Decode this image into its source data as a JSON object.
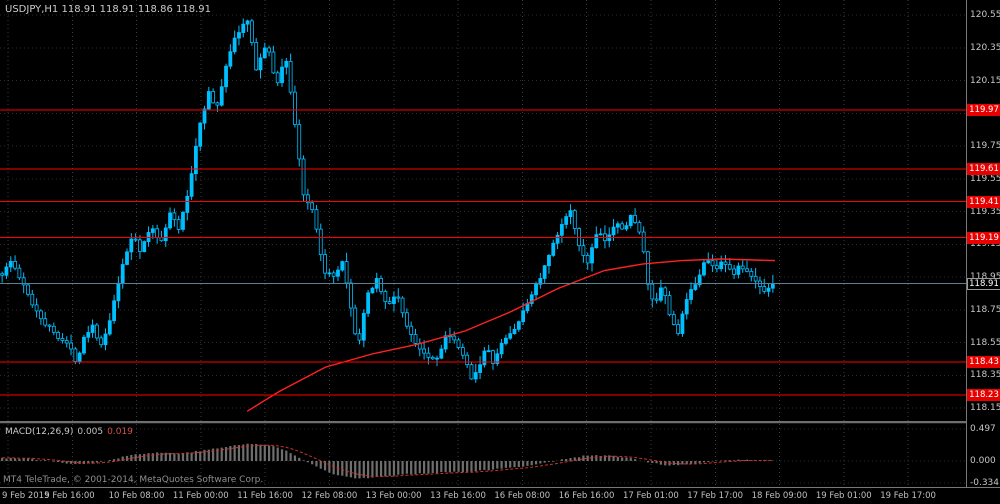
{
  "header": {
    "title": "USDJPY,H1 118.91 118.91 118.86 118.91",
    "symbol": "USDJPY",
    "timeframe": "H1"
  },
  "chart_data": {
    "type": "candlestick",
    "title": "USDJPY,H1",
    "last_bar_ohlc": {
      "open": 118.91,
      "high": 118.91,
      "low": 118.86,
      "close": 118.91
    },
    "current_price": "118.91",
    "y_axis": {
      "min": 118.15,
      "max": 120.55,
      "step": 0.2,
      "ticks": [
        "120.55",
        "120.35",
        "120.15",
        "119.95",
        "119.75",
        "119.55",
        "119.35",
        "119.15",
        "118.95",
        "118.75",
        "118.55",
        "118.35",
        "118.15"
      ]
    },
    "x_axis": {
      "labels": [
        "9 Feb 2015",
        "9 Feb 16:00",
        "10 Feb 08:00",
        "11 Feb 00:00",
        "11 Feb 16:00",
        "12 Feb 08:00",
        "13 Feb 00:00",
        "13 Feb 16:00",
        "16 Feb 08:00",
        "16 Feb 16:00",
        "17 Feb 01:00",
        "17 Feb 17:00",
        "18 Feb 09:00",
        "19 Feb 01:00",
        "19 Feb 17:00"
      ]
    },
    "levels": [
      "119.97",
      "119.61",
      "119.41",
      "119.19",
      "118.43",
      "118.23"
    ],
    "price_path": [
      [
        0,
        118.97
      ],
      [
        0.012,
        119.05
      ],
      [
        0.025,
        118.92
      ],
      [
        0.04,
        118.78
      ],
      [
        0.055,
        118.67
      ],
      [
        0.07,
        118.6
      ],
      [
        0.085,
        118.54
      ],
      [
        0.097,
        118.43
      ],
      [
        0.105,
        118.58
      ],
      [
        0.118,
        118.66
      ],
      [
        0.128,
        118.52
      ],
      [
        0.14,
        118.68
      ],
      [
        0.152,
        118.94
      ],
      [
        0.163,
        119.12
      ],
      [
        0.17,
        119.22
      ],
      [
        0.18,
        119.1
      ],
      [
        0.193,
        119.26
      ],
      [
        0.205,
        119.16
      ],
      [
        0.218,
        119.34
      ],
      [
        0.23,
        119.24
      ],
      [
        0.243,
        119.5
      ],
      [
        0.255,
        119.86
      ],
      [
        0.268,
        120.08
      ],
      [
        0.278,
        119.96
      ],
      [
        0.292,
        120.28
      ],
      [
        0.305,
        120.44
      ],
      [
        0.318,
        120.52
      ],
      [
        0.33,
        120.22
      ],
      [
        0.343,
        120.38
      ],
      [
        0.356,
        120.12
      ],
      [
        0.368,
        120.3
      ],
      [
        0.38,
        119.88
      ],
      [
        0.392,
        119.42
      ],
      [
        0.404,
        119.34
      ],
      [
        0.416,
        119.0
      ],
      [
        0.43,
        118.94
      ],
      [
        0.442,
        119.04
      ],
      [
        0.452,
        118.76
      ],
      [
        0.462,
        118.52
      ],
      [
        0.474,
        118.84
      ],
      [
        0.486,
        118.94
      ],
      [
        0.5,
        118.76
      ],
      [
        0.512,
        118.86
      ],
      [
        0.525,
        118.64
      ],
      [
        0.538,
        118.54
      ],
      [
        0.55,
        118.48
      ],
      [
        0.563,
        118.44
      ],
      [
        0.576,
        118.6
      ],
      [
        0.59,
        118.54
      ],
      [
        0.602,
        118.42
      ],
      [
        0.61,
        118.33
      ],
      [
        0.618,
        118.4
      ],
      [
        0.628,
        118.52
      ],
      [
        0.638,
        118.42
      ],
      [
        0.65,
        118.56
      ],
      [
        0.663,
        118.62
      ],
      [
        0.675,
        118.72
      ],
      [
        0.688,
        118.86
      ],
      [
        0.7,
        118.96
      ],
      [
        0.713,
        119.12
      ],
      [
        0.726,
        119.26
      ],
      [
        0.737,
        119.38
      ],
      [
        0.747,
        119.14
      ],
      [
        0.76,
        119.04
      ],
      [
        0.772,
        119.22
      ],
      [
        0.785,
        119.16
      ],
      [
        0.796,
        119.3
      ],
      [
        0.808,
        119.24
      ],
      [
        0.818,
        119.34
      ],
      [
        0.83,
        119.18
      ],
      [
        0.839,
        118.86
      ],
      [
        0.848,
        118.78
      ],
      [
        0.857,
        118.9
      ],
      [
        0.866,
        118.72
      ],
      [
        0.876,
        118.6
      ],
      [
        0.888,
        118.8
      ],
      [
        0.9,
        118.92
      ],
      [
        0.913,
        119.06
      ],
      [
        0.925,
        119.0
      ],
      [
        0.936,
        119.06
      ],
      [
        0.947,
        118.96
      ],
      [
        0.957,
        119.02
      ],
      [
        0.968,
        118.97
      ],
      [
        0.978,
        118.92
      ],
      [
        0.988,
        118.87
      ],
      [
        1,
        118.91
      ]
    ],
    "ma_line": [
      [
        0.319,
        118.13
      ],
      [
        0.36,
        118.25
      ],
      [
        0.42,
        118.4
      ],
      [
        0.48,
        118.48
      ],
      [
        0.54,
        118.54
      ],
      [
        0.6,
        118.62
      ],
      [
        0.66,
        118.74
      ],
      [
        0.72,
        118.88
      ],
      [
        0.78,
        118.99
      ],
      [
        0.83,
        119.03
      ],
      [
        0.88,
        119.05
      ],
      [
        0.93,
        119.06
      ],
      [
        1,
        119.05
      ]
    ],
    "macd": {
      "label": "MACD(12,26,9)",
      "value_main": "0.005",
      "value_signal": "0.019",
      "axis_ticks": [
        "0.497",
        "0.000",
        "-0.334"
      ],
      "path": [
        [
          0,
          0.05
        ],
        [
          0.04,
          0.03
        ],
        [
          0.08,
          -0.03
        ],
        [
          0.11,
          -0.05
        ],
        [
          0.14,
          0.02
        ],
        [
          0.17,
          0.1
        ],
        [
          0.2,
          0.13
        ],
        [
          0.23,
          0.12
        ],
        [
          0.26,
          0.16
        ],
        [
          0.29,
          0.22
        ],
        [
          0.32,
          0.27
        ],
        [
          0.35,
          0.24
        ],
        [
          0.37,
          0.15
        ],
        [
          0.39,
          0.02
        ],
        [
          0.41,
          -0.1
        ],
        [
          0.43,
          -0.2
        ],
        [
          0.46,
          -0.27
        ],
        [
          0.49,
          -0.25
        ],
        [
          0.52,
          -0.21
        ],
        [
          0.55,
          -0.19
        ],
        [
          0.58,
          -0.17
        ],
        [
          0.61,
          -0.16
        ],
        [
          0.64,
          -0.13
        ],
        [
          0.67,
          -0.09
        ],
        [
          0.7,
          -0.04
        ],
        [
          0.73,
          0.03
        ],
        [
          0.76,
          0.09
        ],
        [
          0.79,
          0.08
        ],
        [
          0.81,
          0.05
        ],
        [
          0.84,
          -0.02
        ],
        [
          0.86,
          -0.07
        ],
        [
          0.89,
          -0.06
        ],
        [
          0.91,
          -0.02
        ],
        [
          0.94,
          0.01
        ],
        [
          0.96,
          0.02
        ],
        [
          0.98,
          0.01
        ],
        [
          1,
          0.005
        ]
      ]
    }
  },
  "footer": {
    "copyright": "MT4 TeleTrade, © 2001-2014, MetaQuotes Software Corp."
  },
  "colors": {
    "background": "#000000",
    "bull_candle": "#00BFFF",
    "bear_candle_fill": "#000000",
    "grid": "#2d2d2d",
    "grid_vertical": "#3c3c3c",
    "level_line": "#FF0000",
    "trend_line": "#FF2222",
    "current_price_line": "#5a7f96",
    "macd_histogram": "#6f6f6f",
    "macd_signal": "#d03030"
  }
}
